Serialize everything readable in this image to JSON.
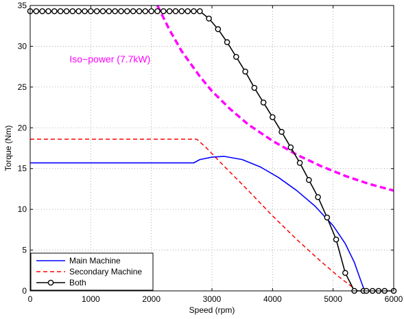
{
  "chart_data": {
    "type": "line",
    "title": "",
    "xlabel": "Speed (rpm)",
    "ylabel": "Torque (Nm)",
    "xlim": [
      0,
      6000
    ],
    "ylim": [
      0,
      35
    ],
    "xticks": [
      0,
      1000,
      2000,
      3000,
      4000,
      5000,
      6000
    ],
    "yticks": [
      0,
      5,
      10,
      15,
      20,
      25,
      30,
      35
    ],
    "grid": true,
    "legend_position": "bottom-left",
    "annotation": {
      "text": "Iso−power (7.7kW)",
      "x": 650,
      "y": 28.0,
      "color": "#ff00ff"
    },
    "series": [
      {
        "name": "Main Machine",
        "color": "#0000ff",
        "style": "solid",
        "x": [
          0,
          2700,
          2800,
          3000,
          3200,
          3500,
          3800,
          4100,
          4400,
          4700,
          5000,
          5200,
          5350,
          5450,
          5520
        ],
        "y": [
          15.7,
          15.7,
          16.1,
          16.4,
          16.5,
          16.1,
          15.2,
          13.9,
          12.3,
          10.4,
          8.0,
          5.8,
          3.5,
          1.4,
          0
        ]
      },
      {
        "name": "Secondary Machine",
        "color": "#ff0000",
        "style": "dashed",
        "x": [
          0,
          2750,
          2900,
          3200,
          3600,
          4000,
          4400,
          4800,
          5100,
          5400
        ],
        "y": [
          18.6,
          18.6,
          17.6,
          15.3,
          12.3,
          9.2,
          6.3,
          3.6,
          1.7,
          0
        ]
      },
      {
        "name": "Iso-power (7.7kW)",
        "color": "#ff00ff",
        "style": "thick-dashed",
        "x": [
          2100,
          2300,
          2500,
          2800,
          3000,
          3300,
          3600,
          4000,
          4400,
          4800,
          5200,
          5600,
          6000
        ],
        "y": [
          35.0,
          32.0,
          29.4,
          26.3,
          24.5,
          22.3,
          20.4,
          18.4,
          16.7,
          15.3,
          14.1,
          13.1,
          12.3
        ]
      },
      {
        "name": "Both",
        "color": "#000000",
        "style": "solid-circle-markers",
        "x": [
          0,
          100,
          200,
          300,
          400,
          500,
          600,
          700,
          800,
          900,
          1000,
          1100,
          1200,
          1300,
          1400,
          1500,
          1600,
          1700,
          1800,
          1900,
          2000,
          2100,
          2200,
          2300,
          2400,
          2500,
          2600,
          2700,
          2800,
          2950,
          3100,
          3250,
          3400,
          3550,
          3700,
          3850,
          4000,
          4150,
          4300,
          4450,
          4600,
          4750,
          4900,
          5050,
          5200,
          5350,
          5500,
          5550,
          5650,
          5750,
          5850,
          6000
        ],
        "y": [
          34.3,
          34.3,
          34.3,
          34.3,
          34.3,
          34.3,
          34.3,
          34.3,
          34.3,
          34.3,
          34.3,
          34.3,
          34.3,
          34.3,
          34.3,
          34.3,
          34.3,
          34.3,
          34.3,
          34.3,
          34.3,
          34.3,
          34.3,
          34.3,
          34.3,
          34.3,
          34.3,
          34.3,
          34.3,
          33.4,
          32.1,
          30.5,
          28.7,
          26.9,
          24.9,
          23.1,
          21.3,
          19.5,
          17.6,
          15.7,
          13.6,
          11.5,
          9.0,
          6.3,
          2.2,
          0,
          0,
          0,
          0,
          0,
          0,
          0
        ]
      }
    ],
    "legend": [
      {
        "label": "Main Machine",
        "series": 0
      },
      {
        "label": "Secondary Machine",
        "series": 1
      },
      {
        "label": "Both",
        "series": 3
      }
    ]
  }
}
